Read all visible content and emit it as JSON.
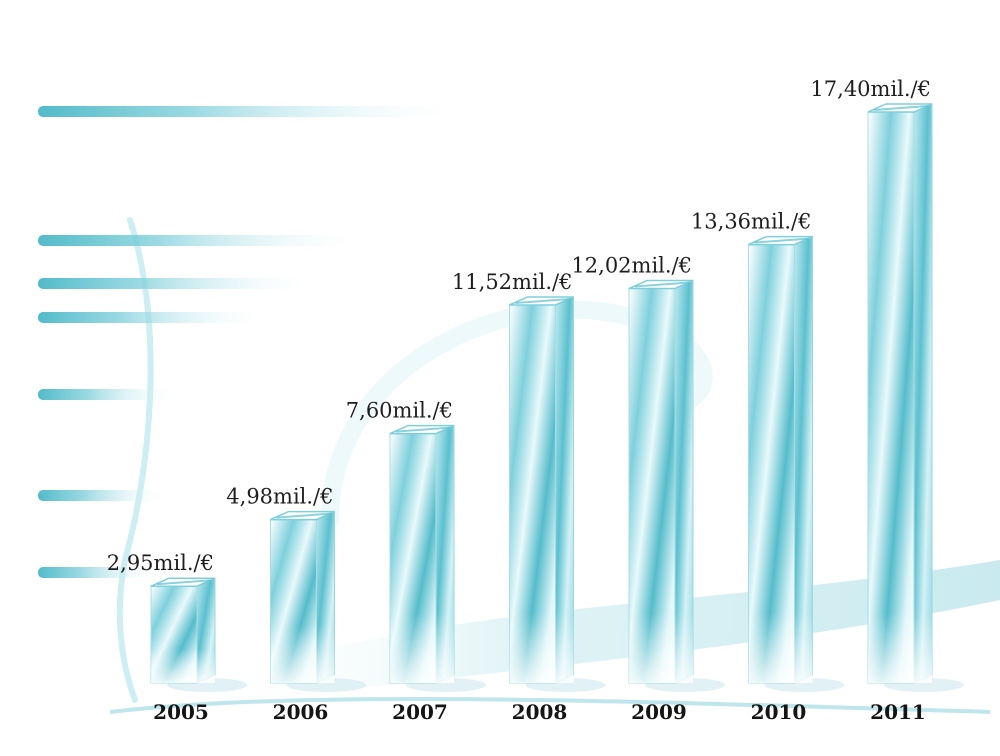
{
  "chart_data": {
    "type": "bar",
    "categories": [
      "2005",
      "2006",
      "2007",
      "2008",
      "2009",
      "2010",
      "2011"
    ],
    "values": [
      2.95,
      4.98,
      7.6,
      11.52,
      12.02,
      13.36,
      17.4
    ],
    "data_labels": [
      "2,95mil./€",
      "4,98mil./€",
      "7,60mil./€",
      "11,52mil./€",
      "12,02mil./€",
      "13,36mil./€",
      "17,40mil./€"
    ],
    "title": "",
    "xlabel": "",
    "ylabel": "",
    "ylim": [
      0,
      17.4
    ],
    "grid": false,
    "legend": "none",
    "style": "3d-glass-columns"
  },
  "colors": {
    "bar_front_light": "#e8fbfd",
    "bar_front_mid": "#9fdbe4",
    "bar_front_dark": "#3fb6c7",
    "bar_side": "#7ccfdb",
    "bar_top": "#ffffff",
    "accent": "#2aa9bb",
    "label_text": "#1e1e1e"
  }
}
